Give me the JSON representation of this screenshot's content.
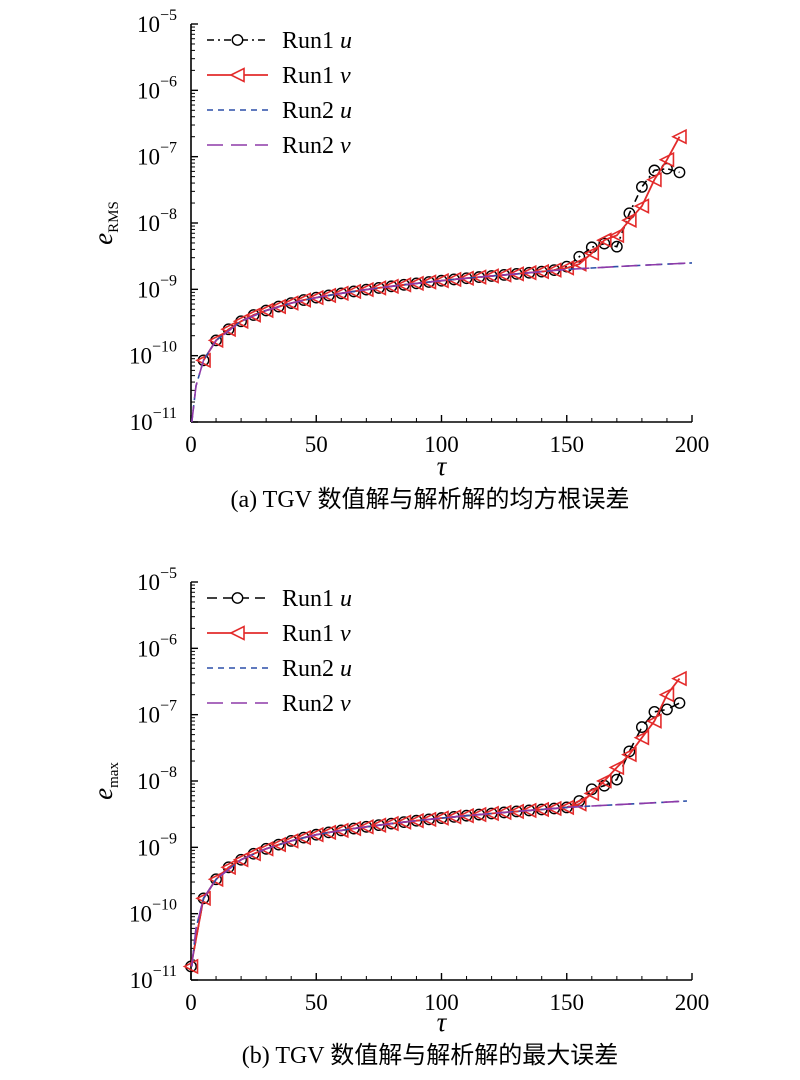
{
  "chart_data": [
    {
      "type": "line",
      "caption": "(a) TGV 数值解与解析解的均方根误差",
      "xlabel": "τ",
      "ylabel_main": "e",
      "ylabel_sub": "RMS",
      "xlim": [
        0,
        200
      ],
      "ylim": [
        1e-11,
        1e-05
      ],
      "yscale": "log",
      "x_ticks": [
        "0",
        "50",
        "100",
        "150",
        "200"
      ],
      "y_ticks": [
        {
          "base": "10",
          "exp": "−11"
        },
        {
          "base": "10",
          "exp": "−10"
        },
        {
          "base": "10",
          "exp": "−9"
        },
        {
          "base": "10",
          "exp": "−8"
        },
        {
          "base": "10",
          "exp": "−7"
        },
        {
          "base": "10",
          "exp": "−6"
        },
        {
          "base": "10",
          "exp": "−5"
        }
      ],
      "legend_position": "top-left",
      "series": [
        {
          "name": "Run1",
          "var": "u",
          "color": "#000000",
          "marker": "circle",
          "style": "dash-dot",
          "x": [
            5,
            10,
            15,
            20,
            25,
            30,
            35,
            40,
            45,
            50,
            55,
            60,
            65,
            70,
            75,
            80,
            85,
            90,
            95,
            100,
            105,
            110,
            115,
            120,
            125,
            130,
            135,
            140,
            145,
            150,
            155,
            160,
            165,
            170,
            175,
            180,
            185,
            190,
            195
          ],
          "values": [
            8.5e-11,
            1.7e-10,
            2.5e-10,
            3.3e-10,
            4.1e-10,
            4.8e-10,
            5.5e-10,
            6.2e-10,
            6.9e-10,
            7.5e-10,
            8.1e-10,
            8.7e-10,
            9.3e-10,
            9.9e-10,
            1.05e-09,
            1.11e-09,
            1.17e-09,
            1.23e-09,
            1.29e-09,
            1.35e-09,
            1.41e-09,
            1.47e-09,
            1.53e-09,
            1.59e-09,
            1.65e-09,
            1.71e-09,
            1.78e-09,
            1.85e-09,
            1.95e-09,
            2.2e-09,
            3.1e-09,
            4.3e-09,
            4.9e-09,
            4.4e-09,
            1.4e-08,
            3.5e-08,
            6.2e-08,
            6.6e-08,
            5.8e-08
          ]
        },
        {
          "name": "Run1",
          "var": "v",
          "color": "#e32b2b",
          "marker": "triangle-left",
          "style": "solid",
          "x": [
            5,
            10,
            15,
            20,
            25,
            30,
            35,
            40,
            45,
            50,
            55,
            60,
            65,
            70,
            75,
            80,
            85,
            90,
            95,
            100,
            105,
            110,
            115,
            120,
            125,
            130,
            135,
            140,
            145,
            150,
            155,
            160,
            165,
            170,
            175,
            180,
            185,
            190,
            195
          ],
          "values": [
            8.5e-11,
            1.7e-10,
            2.5e-10,
            3.3e-10,
            4.1e-10,
            4.8e-10,
            5.5e-10,
            6.2e-10,
            6.9e-10,
            7.5e-10,
            8.1e-10,
            8.7e-10,
            9.3e-10,
            9.9e-10,
            1.05e-09,
            1.11e-09,
            1.17e-09,
            1.23e-09,
            1.29e-09,
            1.35e-09,
            1.41e-09,
            1.47e-09,
            1.53e-09,
            1.59e-09,
            1.65e-09,
            1.71e-09,
            1.78e-09,
            1.85e-09,
            1.95e-09,
            2.1e-09,
            2.4e-09,
            3.5e-09,
            5.5e-09,
            6.5e-09,
            1.1e-08,
            1.8e-08,
            4.5e-08,
            9e-08,
            2e-07
          ]
        },
        {
          "name": "Run2",
          "var": "u",
          "color": "#2b4fa8",
          "marker": "none",
          "style": "short-dash",
          "x": [
            0.3,
            2,
            5,
            10,
            20,
            30,
            40,
            50,
            60,
            70,
            80,
            90,
            100,
            110,
            120,
            130,
            140,
            150,
            160,
            170,
            180,
            190,
            200
          ],
          "values": [
            1e-11,
            3.5e-11,
            8.5e-11,
            1.7e-10,
            3.3e-10,
            4.8e-10,
            6.2e-10,
            7.5e-10,
            8.7e-10,
            9.9e-10,
            1.11e-09,
            1.23e-09,
            1.35e-09,
            1.47e-09,
            1.59e-09,
            1.71e-09,
            1.85e-09,
            2e-09,
            2.1e-09,
            2.2e-09,
            2.3e-09,
            2.4e-09,
            2.5e-09
          ]
        },
        {
          "name": "Run2",
          "var": "v",
          "color": "#8e3aa8",
          "marker": "none",
          "style": "long-dash",
          "x": [
            0.3,
            2,
            5,
            10,
            20,
            30,
            40,
            50,
            60,
            70,
            80,
            90,
            100,
            110,
            120,
            130,
            140,
            150,
            160,
            170,
            180,
            190,
            200
          ],
          "values": [
            1e-11,
            3.5e-11,
            8.5e-11,
            1.7e-10,
            3.3e-10,
            4.8e-10,
            6.2e-10,
            7.5e-10,
            8.7e-10,
            9.9e-10,
            1.11e-09,
            1.23e-09,
            1.35e-09,
            1.47e-09,
            1.59e-09,
            1.71e-09,
            1.85e-09,
            2e-09,
            2.1e-09,
            2.2e-09,
            2.3e-09,
            2.4e-09,
            2.5e-09
          ]
        }
      ]
    },
    {
      "type": "line",
      "caption": "(b) TGV 数值解与解析解的最大误差",
      "xlabel": "τ",
      "ylabel_main": "e",
      "ylabel_sub": "max",
      "xlim": [
        0,
        200
      ],
      "ylim": [
        1e-11,
        1e-05
      ],
      "yscale": "log",
      "x_ticks": [
        "0",
        "50",
        "100",
        "150",
        "200"
      ],
      "y_ticks": [
        {
          "base": "10",
          "exp": "−11"
        },
        {
          "base": "10",
          "exp": "−10"
        },
        {
          "base": "10",
          "exp": "−9"
        },
        {
          "base": "10",
          "exp": "−8"
        },
        {
          "base": "10",
          "exp": "−7"
        },
        {
          "base": "10",
          "exp": "−6"
        },
        {
          "base": "10",
          "exp": "−5"
        }
      ],
      "legend_position": "top-left",
      "series": [
        {
          "name": "Run1",
          "var": "u",
          "color": "#000000",
          "marker": "circle",
          "style": "dash",
          "x": [
            0,
            5,
            10,
            15,
            20,
            25,
            30,
            35,
            40,
            45,
            50,
            55,
            60,
            65,
            70,
            75,
            80,
            85,
            90,
            95,
            100,
            105,
            110,
            115,
            120,
            125,
            130,
            135,
            140,
            145,
            150,
            155,
            160,
            165,
            170,
            175,
            180,
            185,
            190,
            195
          ],
          "values": [
            1.6e-11,
            1.7e-10,
            3.3e-10,
            5e-10,
            6.5e-10,
            8e-10,
            9.5e-10,
            1.1e-09,
            1.25e-09,
            1.4e-09,
            1.55e-09,
            1.68e-09,
            1.8e-09,
            1.92e-09,
            2.04e-09,
            2.16e-09,
            2.28e-09,
            2.4e-09,
            2.52e-09,
            2.64e-09,
            2.76e-09,
            2.88e-09,
            3e-09,
            3.12e-09,
            3.24e-09,
            3.36e-09,
            3.48e-09,
            3.6e-09,
            3.72e-09,
            3.85e-09,
            4e-09,
            5e-09,
            7.5e-09,
            8.5e-09,
            1.05e-08,
            2.8e-08,
            6.5e-08,
            1.1e-07,
            1.2e-07,
            1.5e-07
          ]
        },
        {
          "name": "Run1",
          "var": "v",
          "color": "#e32b2b",
          "marker": "triangle-left",
          "style": "solid",
          "x": [
            0,
            5,
            10,
            15,
            20,
            25,
            30,
            35,
            40,
            45,
            50,
            55,
            60,
            65,
            70,
            75,
            80,
            85,
            90,
            95,
            100,
            105,
            110,
            115,
            120,
            125,
            130,
            135,
            140,
            145,
            150,
            155,
            160,
            165,
            170,
            175,
            180,
            185,
            190,
            195
          ],
          "values": [
            1.6e-11,
            1.7e-10,
            3.3e-10,
            5e-10,
            6.5e-10,
            8e-10,
            9.5e-10,
            1.1e-09,
            1.25e-09,
            1.4e-09,
            1.55e-09,
            1.68e-09,
            1.8e-09,
            1.92e-09,
            2.04e-09,
            2.16e-09,
            2.28e-09,
            2.4e-09,
            2.52e-09,
            2.64e-09,
            2.76e-09,
            2.88e-09,
            3e-09,
            3.12e-09,
            3.24e-09,
            3.36e-09,
            3.48e-09,
            3.6e-09,
            3.72e-09,
            3.85e-09,
            4e-09,
            4.5e-09,
            6.5e-09,
            1e-08,
            1.6e-08,
            2.5e-08,
            4.5e-08,
            8e-08,
            2e-07,
            3.5e-07
          ]
        },
        {
          "name": "Run2",
          "var": "u",
          "color": "#2b4fa8",
          "marker": "none",
          "style": "short-dash",
          "x": [
            0.3,
            2,
            5,
            10,
            20,
            30,
            40,
            50,
            60,
            70,
            80,
            90,
            100,
            110,
            120,
            130,
            140,
            150,
            160,
            170,
            180,
            190,
            198
          ],
          "values": [
            1.6e-11,
            6e-11,
            1.7e-10,
            3.3e-10,
            6.5e-10,
            9.5e-10,
            1.25e-09,
            1.55e-09,
            1.8e-09,
            2.04e-09,
            2.28e-09,
            2.52e-09,
            2.76e-09,
            3e-09,
            3.24e-09,
            3.48e-09,
            3.72e-09,
            4e-09,
            4.2e-09,
            4.4e-09,
            4.6e-09,
            4.8e-09,
            5e-09
          ]
        },
        {
          "name": "Run2",
          "var": "v",
          "color": "#8e3aa8",
          "marker": "none",
          "style": "long-dash",
          "x": [
            0.3,
            2,
            5,
            10,
            20,
            30,
            40,
            50,
            60,
            70,
            80,
            90,
            100,
            110,
            120,
            130,
            140,
            150,
            160,
            170,
            180,
            190,
            198
          ],
          "values": [
            1.6e-11,
            6e-11,
            1.7e-10,
            3.3e-10,
            6.5e-10,
            9.5e-10,
            1.25e-09,
            1.55e-09,
            1.8e-09,
            2.04e-09,
            2.28e-09,
            2.52e-09,
            2.76e-09,
            3e-09,
            3.24e-09,
            3.48e-09,
            3.72e-09,
            4e-09,
            4.2e-09,
            4.4e-09,
            4.6e-09,
            4.8e-09,
            5e-09
          ]
        }
      ]
    }
  ]
}
